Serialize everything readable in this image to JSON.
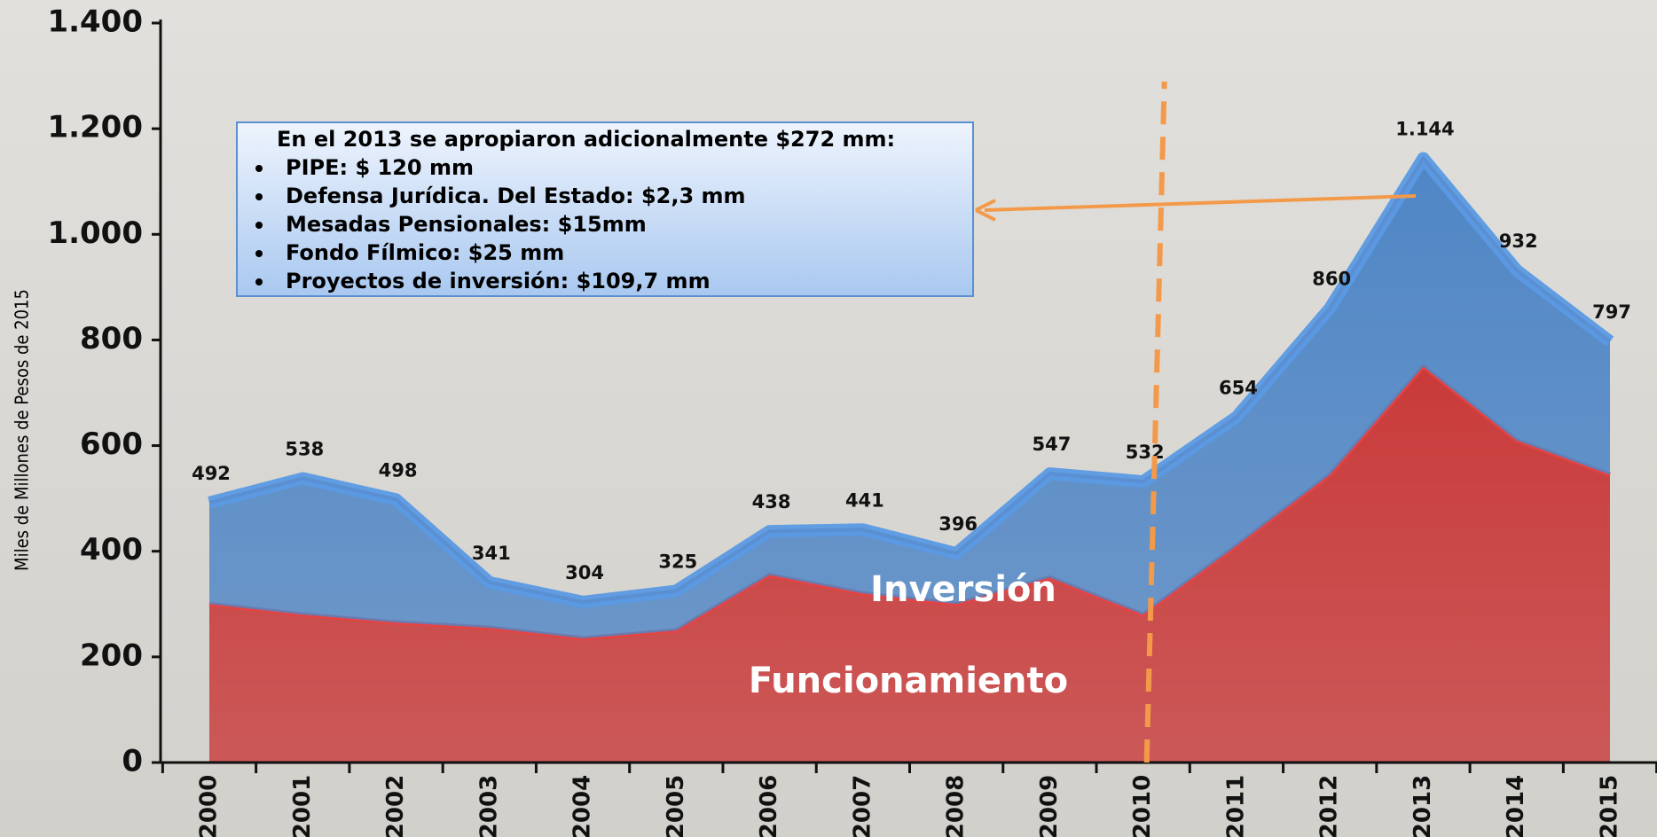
{
  "chart_data": {
    "type": "stacked_area",
    "y_label": "Miles de Millones de Pesos de 2015",
    "categories": [
      "2000",
      "2001",
      "2002",
      "2003",
      "2004",
      "2005",
      "2006",
      "2007",
      "2008",
      "2009",
      "2010",
      "2011",
      "2012",
      "2013",
      "2014",
      "2015"
    ],
    "series": [
      {
        "name": "Funcionamiento",
        "color": "#c93a3a",
        "values": [
          300,
          280,
          265,
          255,
          235,
          250,
          355,
          320,
          300,
          350,
          280,
          410,
          545,
          750,
          610,
          545
        ]
      },
      {
        "name": "Inversión",
        "color": "#4f86c6",
        "values": [
          192,
          258,
          233,
          86,
          69,
          75,
          83,
          121,
          96,
          197,
          252,
          244,
          315,
          394,
          322,
          252
        ]
      }
    ],
    "totals": [
      492,
      538,
      498,
      341,
      304,
      325,
      438,
      441,
      396,
      547,
      532,
      654,
      860,
      1144,
      932,
      797
    ],
    "value_labels": [
      "492",
      "538",
      "498",
      "341",
      "304",
      "325",
      "438",
      "441",
      "396",
      "547",
      "532",
      "654",
      "860",
      "1.144",
      "932",
      "797"
    ],
    "ylim": [
      0,
      1400
    ],
    "yticks": [
      0,
      200,
      400,
      600,
      800,
      {
        "value": 1000,
        "label": "1.000"
      },
      {
        "value": 1200,
        "label": "1.200"
      },
      {
        "value": 1400,
        "label": "1.400"
      }
    ],
    "annotation": {
      "title": "En el 2013 se apropiaron adicionalmente $272 mm:",
      "items": [
        "PIPE: $ 120 mm",
        "Defensa Jurídica. Del Estado: $2,3 mm",
        "Mesadas Pensionales: $15mm",
        "Fondo Fílmico: $25 mm",
        "Proyectos de inversión: $109,7 mm"
      ]
    }
  }
}
